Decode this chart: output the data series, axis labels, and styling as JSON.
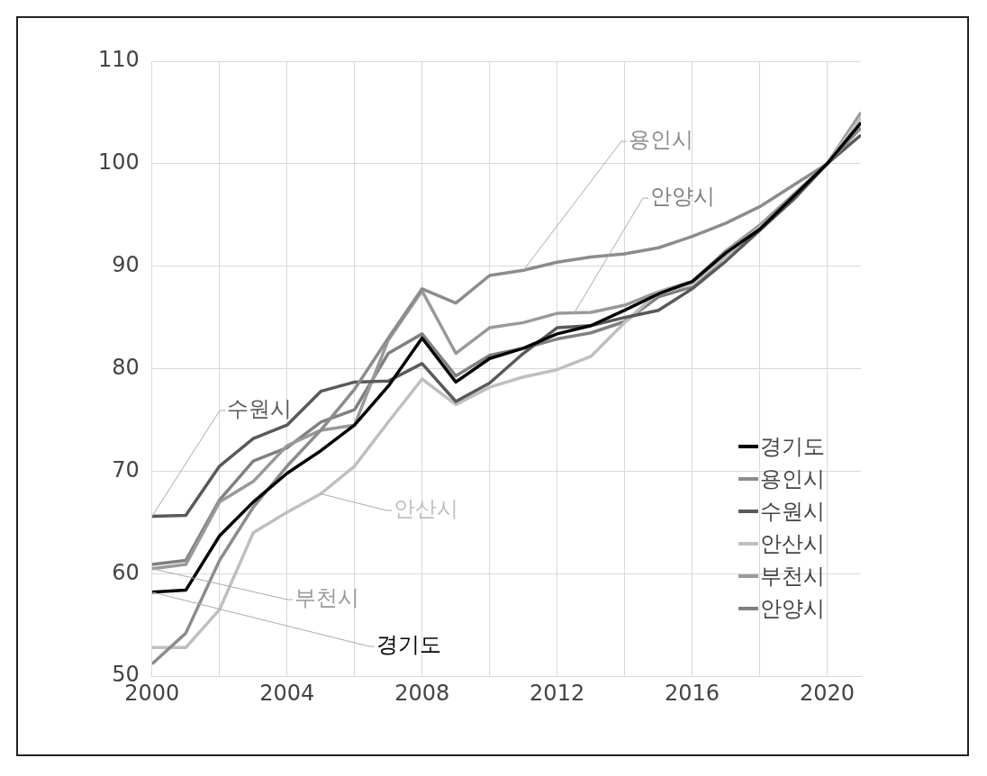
{
  "chart_data": {
    "type": "line",
    "x": [
      2000,
      2001,
      2002,
      2003,
      2004,
      2005,
      2006,
      2007,
      2008,
      2009,
      2010,
      2011,
      2012,
      2013,
      2014,
      2015,
      2016,
      2017,
      2018,
      2019,
      2020,
      2021
    ],
    "series": [
      {
        "name": "경기도",
        "color": "#000000",
        "values": [
          58.2,
          58.4,
          63.7,
          67,
          69.8,
          72,
          74.5,
          78.3,
          83,
          78.7,
          81,
          82,
          83.4,
          84.2,
          85.7,
          87.3,
          88.5,
          91.3,
          93.6,
          96.8,
          100,
          104
        ]
      },
      {
        "name": "용인시",
        "color": "#8c8c8c",
        "values": [
          51.2,
          54.2,
          61.3,
          66.5,
          70.5,
          74,
          78,
          83,
          87.8,
          86.4,
          89.1,
          89.6,
          90.4,
          90.9,
          91.2,
          91.8,
          92.9,
          94.2,
          95.8,
          97.9,
          100,
          103.5
        ]
      },
      {
        "name": "수원시",
        "color": "#595959",
        "values": [
          65.6,
          65.7,
          70.5,
          73.2,
          74.5,
          77.8,
          78.7,
          78.8,
          80.5,
          76.8,
          78.6,
          81.5,
          84,
          84.2,
          85,
          85.7,
          87.8,
          90.5,
          93.5,
          96.5,
          100,
          102.8
        ]
      },
      {
        "name": "안산시",
        "color": "#bfbfbf",
        "values": [
          52.8,
          52.8,
          56.5,
          64,
          66,
          67.8,
          70.5,
          74.8,
          79,
          76.5,
          78.2,
          79.2,
          79.9,
          81.2,
          84.5,
          87.5,
          88.2,
          91,
          93.8,
          96.5,
          100,
          104.5
        ]
      },
      {
        "name": "부천시",
        "color": "#999999",
        "values": [
          60.5,
          60.9,
          67,
          69,
          72.5,
          74,
          74.5,
          82.8,
          87.6,
          81.5,
          84,
          84.5,
          85.4,
          85.5,
          86.2,
          87.5,
          88.5,
          91.5,
          94,
          97,
          100,
          105
        ]
      },
      {
        "name": "안양시",
        "color": "#808080",
        "values": [
          60.9,
          61.3,
          67.2,
          71,
          72.3,
          74.8,
          76,
          81.5,
          83.4,
          79.3,
          81.3,
          82,
          82.9,
          83.5,
          84.6,
          87,
          88,
          91,
          93.8,
          96.8,
          100,
          104
        ]
      }
    ],
    "xlim": [
      2000,
      2021
    ],
    "xticks": [
      2000,
      {
        "value": 2002,
        "label": null
      },
      2004,
      {
        "value": 2006,
        "label": null
      },
      2008,
      {
        "value": 2010,
        "label": null
      },
      2012,
      {
        "value": 2014,
        "label": null
      },
      2016,
      {
        "value": 2018,
        "label": null
      },
      2020
    ],
    "ylim": [
      50,
      110
    ],
    "yticks": [
      50,
      60,
      70,
      80,
      90,
      100,
      110
    ],
    "grid": true,
    "legend": "bottom right",
    "marker": "none",
    "line_style": "solid",
    "annotations": [
      {
        "text": "용인시",
        "x": 2011,
        "y": 89.6
      },
      {
        "text": "안양시",
        "x": 2012.5,
        "y": 85.4
      },
      {
        "text": "수원시",
        "x": 2000,
        "y": 65.6
      },
      {
        "text": "안산시",
        "x": 2005,
        "y": 67.8
      },
      {
        "text": "부천시",
        "x": 2000,
        "y": 60.5
      },
      {
        "text": "경기도",
        "x": 2000,
        "y": 58.2
      }
    ]
  }
}
